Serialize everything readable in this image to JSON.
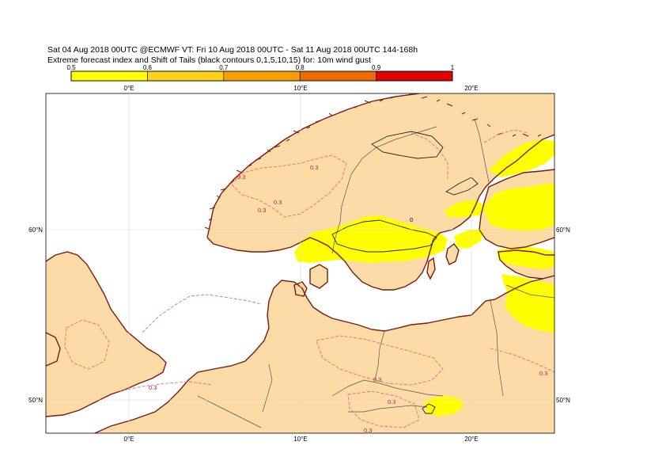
{
  "header": {
    "line1": "Sat 04 Aug 2018 00UTC @ECMWF VT: Fri 10 Aug 2018 00UTC - Sat 11 Aug 2018 00UTC  144-168h",
    "line2": "Extreme forecast index and Shift of Tails (black contours 0,1,5,10,15) for: 10m wind gust"
  },
  "colorbar": {
    "ticks": [
      "0.5",
      "0.6",
      "0.7",
      "0.8",
      "0.9",
      "1"
    ],
    "colors": [
      "#ffff00",
      "#ffd21e",
      "#f5a000",
      "#ec6a00",
      "#e00000"
    ]
  },
  "map": {
    "lon_labels": [
      "0°E",
      "10°E",
      "20°E"
    ],
    "lat_labels": [
      "60°N",
      "50°N"
    ],
    "land_color": "#fcdba6",
    "sea_color": "#ffffff",
    "coast_color": "#7a1a10",
    "efi_color": "#ffff00",
    "contour_labels": [
      "0.3",
      "0.3",
      "0.3",
      "0.3",
      "0.3",
      "0.3",
      "0.3",
      "0.3",
      "0.3",
      "0"
    ]
  }
}
